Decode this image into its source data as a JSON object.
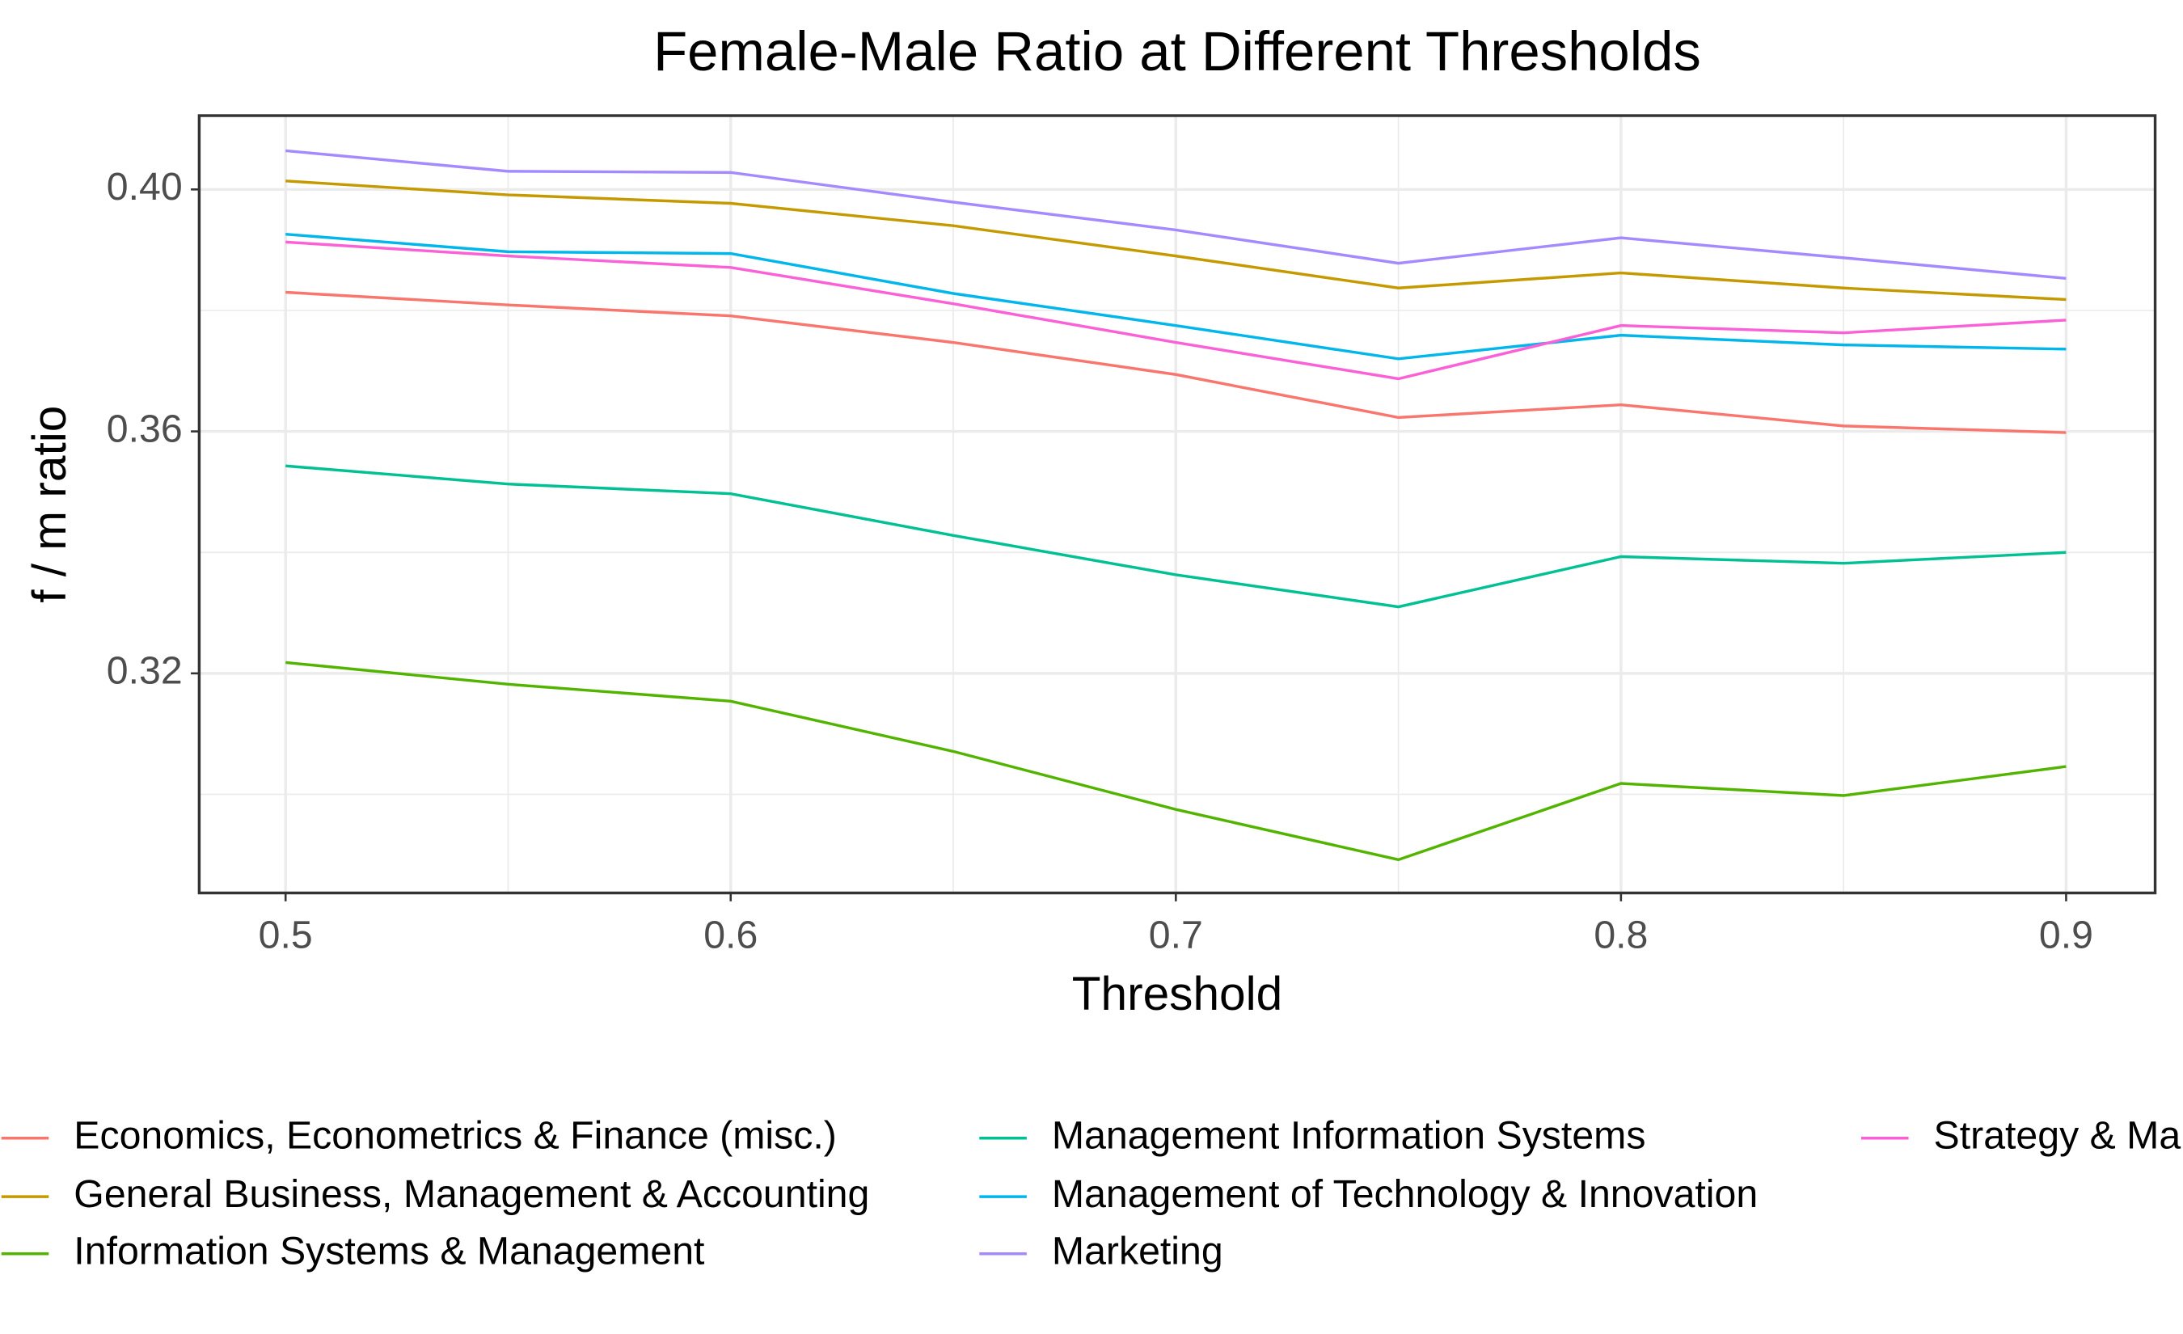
{
  "chart_data": {
    "type": "line",
    "title": "Female-Male Ratio at Different Thresholds",
    "x_label": "Threshold",
    "y_label": "f / m ratio",
    "x": [
      0.5,
      0.55,
      0.6,
      0.65,
      0.7,
      0.75,
      0.8,
      0.85,
      0.9
    ],
    "xlim": [
      0.4806,
      0.92
    ],
    "xticks": [
      0.5,
      0.6,
      0.7,
      0.8,
      0.9
    ],
    "ylim": [
      0.2837,
      0.4122
    ],
    "yticks": [
      0.32,
      0.36,
      {
        "value": 0.4,
        "label": "0.40"
      }
    ],
    "grid": true,
    "series": [
      {
        "name": "Economics, Econometrics & Finance (misc.)",
        "color": "#f8766d",
        "values": [
          0.383,
          0.3809,
          0.3791,
          0.3747,
          0.3694,
          0.3623,
          0.3644,
          0.3609,
          0.3598
        ]
      },
      {
        "name": "General Business, Management & Accounting",
        "color": "#c49a00",
        "values": [
          0.4014,
          0.3991,
          0.3977,
          0.394,
          0.389,
          0.3837,
          0.3862,
          0.3837,
          0.3818
        ]
      },
      {
        "name": "Information Systems & Management",
        "color": "#53b400",
        "values": [
          0.3218,
          0.3182,
          0.3154,
          0.3071,
          0.2975,
          0.2892,
          0.3018,
          0.2998,
          0.3046
        ]
      },
      {
        "name": "Management Information Systems",
        "color": "#00c094",
        "values": [
          0.3543,
          0.3513,
          0.3497,
          0.3428,
          0.3363,
          0.331,
          0.3393,
          0.3382,
          0.34
        ]
      },
      {
        "name": "Management of Technology & Innovation",
        "color": "#00b6eb",
        "values": [
          0.3926,
          0.3897,
          0.3894,
          0.3828,
          0.3775,
          0.372,
          0.3759,
          0.3743,
          0.3736
        ]
      },
      {
        "name": "Marketing",
        "color": "#a58aff",
        "values": [
          0.4064,
          0.403,
          0.4028,
          0.3979,
          0.3933,
          0.3878,
          0.392,
          0.3887,
          0.3853
        ]
      },
      {
        "name": "Strategy & Ma",
        "color": "#fb61d7",
        "values": [
          0.3913,
          0.389,
          0.3871,
          0.3811,
          0.3747,
          0.3687,
          0.3775,
          0.3763,
          0.3784
        ]
      }
    ]
  }
}
